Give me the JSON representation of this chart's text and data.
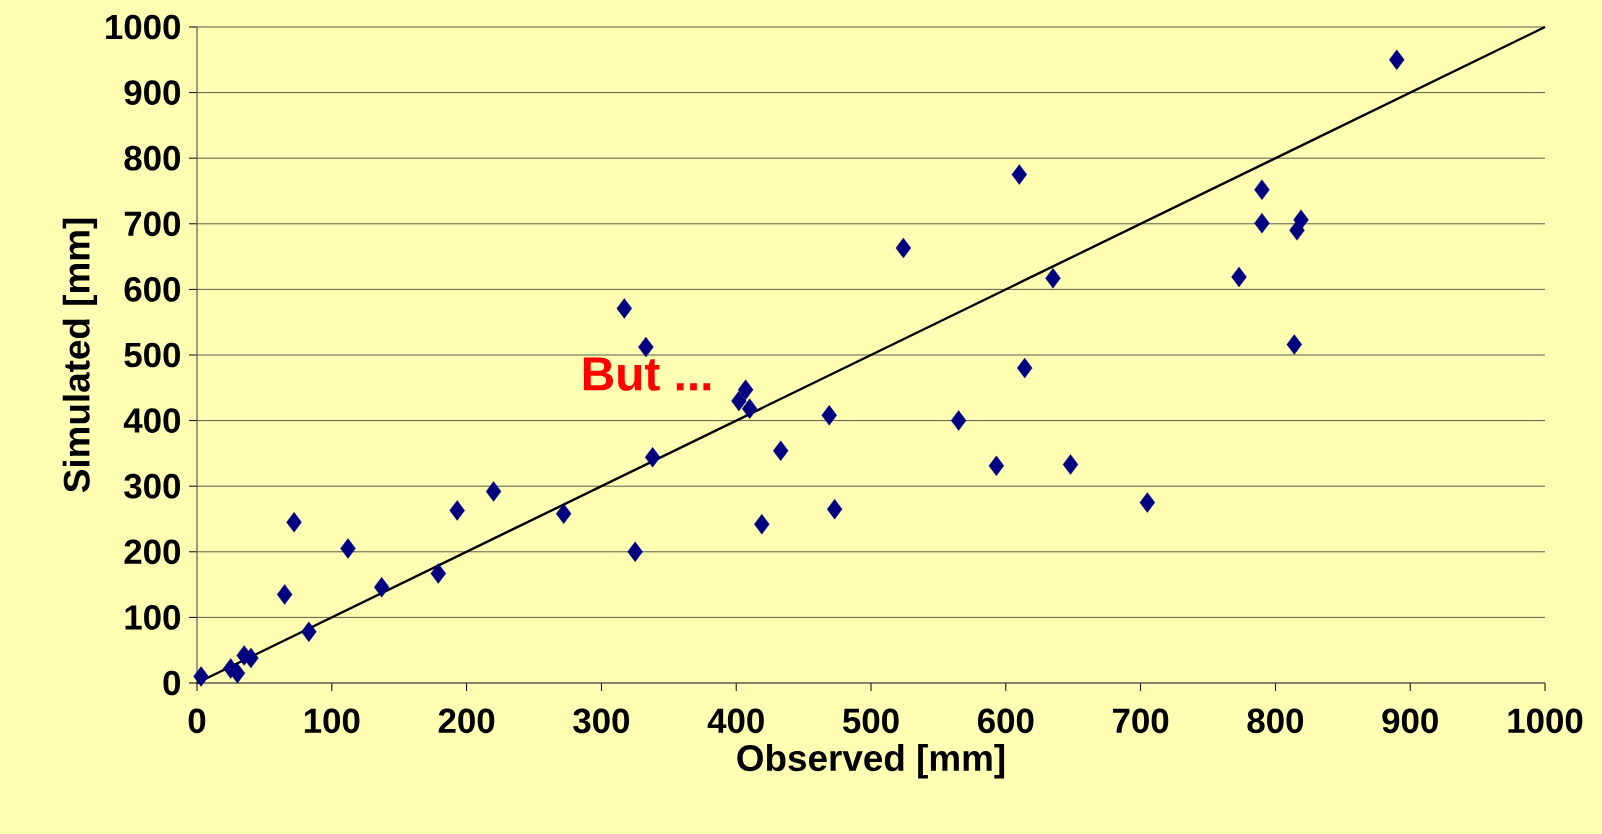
{
  "chart_data": {
    "type": "scatter",
    "xlabel": "Observed [mm]",
    "ylabel": "Simulated [mm]",
    "xlim": [
      0,
      1000
    ],
    "ylim": [
      0,
      1000
    ],
    "xticks": [
      0,
      100,
      200,
      300,
      400,
      500,
      600,
      700,
      800,
      900,
      1000
    ],
    "yticks": [
      0,
      100,
      200,
      300,
      400,
      500,
      600,
      700,
      800,
      900,
      1000
    ],
    "grid": "y",
    "marker": "diamond",
    "annotations": [
      "But ..."
    ],
    "series": [
      {
        "color": "#000080",
        "x": [
          3,
          25,
          30,
          35,
          40,
          65,
          72,
          83,
          112,
          137,
          179,
          193,
          220,
          272,
          317,
          325,
          333,
          338,
          402,
          407,
          410,
          419,
          433,
          469,
          473,
          524,
          565,
          593,
          610,
          614,
          635,
          648,
          705,
          773,
          790,
          790,
          814,
          816,
          819,
          890
        ],
        "values": [
          10,
          22,
          15,
          42,
          38,
          135,
          245,
          78,
          205,
          146,
          167,
          263,
          292,
          258,
          571,
          200,
          512,
          344,
          430,
          447,
          418,
          242,
          354,
          408,
          265,
          663,
          400,
          331,
          775,
          480,
          617,
          333,
          275,
          619,
          752,
          701,
          516,
          690,
          706,
          950
        ]
      },
      {
        "type": "line",
        "marker": "none",
        "color": "#000000",
        "x": [
          0,
          1000
        ],
        "values": [
          0,
          1000
        ]
      }
    ]
  }
}
